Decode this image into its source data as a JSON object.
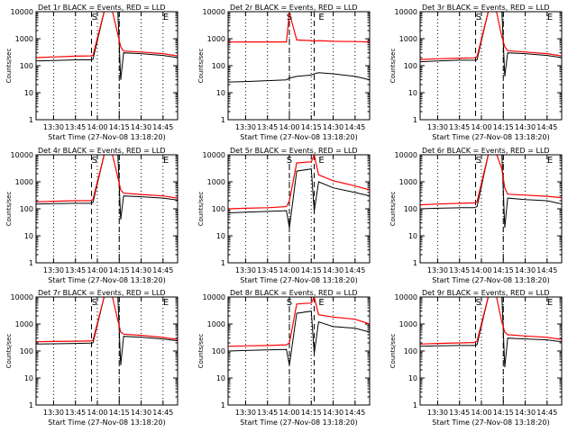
{
  "colors": {
    "events": "#000000",
    "lld": "#ff0000",
    "background": "#ffffff"
  },
  "chart_data": [
    {
      "type": "line",
      "title": "Det 1r BLACK = Events, RED = LLD",
      "xlabel": "Start Time (27-Nov-08 13:18:20)",
      "ylabel": "Counts/sec",
      "x_ticks": [
        "13:30",
        "13:45",
        "14:00",
        "14:15",
        "14:30",
        "14:45"
      ],
      "y_ticks": [
        "1",
        "10",
        "100",
        "1000",
        "10000"
      ],
      "y_scale": "log",
      "ylim": [
        1,
        10000
      ],
      "xlim": [
        "13:18",
        "14:55"
      ],
      "markers": [
        {
          "label": "S",
          "x": "13:58"
        },
        {
          "label": "E",
          "x": "14:47"
        }
      ],
      "dashed_lines": [
        "13:56",
        "14:15"
      ],
      "dotted_lines": [
        "13:30",
        "13:45",
        "14:00",
        "14:15",
        "14:30",
        "14:45"
      ],
      "series": [
        {
          "name": "Events",
          "x": [
            "13:18",
            "13:30",
            "13:45",
            "13:55",
            "13:57",
            "14:05",
            "14:10",
            "14:14",
            "14:16",
            "14:18",
            "14:30",
            "14:45",
            "14:55"
          ],
          "y": [
            150,
            155,
            165,
            165,
            170,
            12000,
            12000,
            12000,
            30,
            300,
            280,
            240,
            200
          ]
        },
        {
          "name": "LLD",
          "x": [
            "13:18",
            "13:30",
            "13:45",
            "13:55",
            "13:57",
            "14:05",
            "14:10",
            "14:14",
            "14:16",
            "14:18",
            "14:30",
            "14:45",
            "14:55"
          ],
          "y": [
            200,
            210,
            225,
            230,
            240,
            12000,
            12000,
            1500,
            500,
            350,
            320,
            280,
            230
          ]
        }
      ]
    },
    {
      "type": "line",
      "title": "Det 2r BLACK = Events, RED = LLD",
      "xlabel": "Start Time (27-Nov-08 13:18:20)",
      "ylabel": "Counts/sec",
      "x_ticks": [
        "13:30",
        "13:45",
        "14:00",
        "14:15",
        "14:30",
        "14:45"
      ],
      "y_ticks": [
        "1",
        "10",
        "100",
        "1000",
        "10000"
      ],
      "y_scale": "log",
      "ylim": [
        1,
        10000
      ],
      "xlim": [
        "13:18",
        "14:55"
      ],
      "markers": [
        {
          "label": "S",
          "x": "14:00"
        },
        {
          "label": "E",
          "x": "14:22"
        }
      ],
      "dashed_lines": [
        "14:00",
        "14:17"
      ],
      "dotted_lines": [
        "13:30",
        "13:45",
        "14:00",
        "14:15",
        "14:30",
        "14:45"
      ],
      "series": [
        {
          "name": "Events",
          "x": [
            "13:18",
            "13:30",
            "13:45",
            "13:58",
            "14:00",
            "14:05",
            "14:15",
            "14:17",
            "14:20",
            "14:30",
            "14:45",
            "14:55"
          ],
          "y": [
            25,
            26,
            28,
            30,
            35,
            40,
            45,
            50,
            55,
            50,
            40,
            30
          ]
        },
        {
          "name": "LLD",
          "x": [
            "13:18",
            "13:30",
            "13:45",
            "13:58",
            "14:00",
            "14:05",
            "14:15",
            "14:17",
            "14:20",
            "14:30",
            "14:45",
            "14:55"
          ],
          "y": [
            750,
            760,
            760,
            760,
            9000,
            900,
            850,
            800,
            850,
            800,
            780,
            760
          ]
        }
      ]
    },
    {
      "type": "line",
      "title": "Det 3r BLACK = Events, RED = LLD",
      "xlabel": "Start Time (27-Nov-08 13:18:20)",
      "ylabel": "Counts/sec",
      "x_ticks": [
        "13:30",
        "13:45",
        "14:00",
        "14:15",
        "14:30",
        "14:45"
      ],
      "y_ticks": [
        "1",
        "10",
        "100",
        "1000",
        "10000"
      ],
      "y_scale": "log",
      "ylim": [
        1,
        10000
      ],
      "xlim": [
        "13:18",
        "14:55"
      ],
      "markers": [
        {
          "label": "S",
          "x": "13:58"
        },
        {
          "label": "E",
          "x": "14:47"
        }
      ],
      "dashed_lines": [
        "13:56",
        "14:15"
      ],
      "dotted_lines": [
        "13:30",
        "13:45",
        "14:00",
        "14:15",
        "14:30",
        "14:45"
      ],
      "series": [
        {
          "name": "Events",
          "x": [
            "13:18",
            "13:30",
            "13:45",
            "13:55",
            "13:57",
            "14:05",
            "14:10",
            "14:14",
            "14:16",
            "14:18",
            "14:30",
            "14:45",
            "14:55"
          ],
          "y": [
            140,
            150,
            160,
            160,
            165,
            12000,
            12000,
            12000,
            40,
            300,
            280,
            240,
            200
          ]
        },
        {
          "name": "LLD",
          "x": [
            "13:18",
            "13:30",
            "13:45",
            "13:55",
            "13:57",
            "14:05",
            "14:10",
            "14:14",
            "14:16",
            "14:18",
            "14:30",
            "14:45",
            "14:55"
          ],
          "y": [
            170,
            180,
            190,
            195,
            210,
            12000,
            12000,
            1200,
            500,
            360,
            320,
            280,
            230
          ]
        }
      ]
    },
    {
      "type": "line",
      "title": "Det 4r BLACK = Events, RED = LLD",
      "xlabel": "Start Time (27-Nov-08 13:18:20)",
      "ylabel": "Counts/sec",
      "x_ticks": [
        "13:30",
        "13:45",
        "14:00",
        "14:15",
        "14:30",
        "14:45"
      ],
      "y_ticks": [
        "1",
        "10",
        "100",
        "1000",
        "10000"
      ],
      "y_scale": "log",
      "ylim": [
        1,
        10000
      ],
      "xlim": [
        "13:18",
        "14:55"
      ],
      "markers": [
        {
          "label": "S",
          "x": "13:58"
        },
        {
          "label": "E",
          "x": "14:47"
        }
      ],
      "dashed_lines": [
        "13:56",
        "14:15"
      ],
      "dotted_lines": [
        "13:30",
        "13:45",
        "14:00",
        "14:15",
        "14:30",
        "14:45"
      ],
      "series": [
        {
          "name": "Events",
          "x": [
            "13:18",
            "13:30",
            "13:45",
            "13:55",
            "13:57",
            "14:05",
            "14:10",
            "14:14",
            "14:16",
            "14:18",
            "14:30",
            "14:45",
            "14:55"
          ],
          "y": [
            150,
            155,
            160,
            160,
            170,
            12000,
            12000,
            12000,
            40,
            300,
            280,
            250,
            210
          ]
        },
        {
          "name": "LLD",
          "x": [
            "13:18",
            "13:30",
            "13:45",
            "13:55",
            "13:57",
            "14:05",
            "14:10",
            "14:14",
            "14:16",
            "14:18",
            "14:30",
            "14:45",
            "14:55"
          ],
          "y": [
            180,
            190,
            200,
            200,
            220,
            12000,
            12000,
            1500,
            500,
            380,
            340,
            300,
            250
          ]
        }
      ]
    },
    {
      "type": "line",
      "title": "Det 5r BLACK = Events, RED = LLD",
      "xlabel": "Start Time (27-Nov-08 13:18:20)",
      "ylabel": "Counts/sec",
      "x_ticks": [
        "13:30",
        "13:45",
        "14:00",
        "14:15",
        "14:30",
        "14:45"
      ],
      "y_ticks": [
        "1",
        "10",
        "100",
        "1000",
        "10000"
      ],
      "y_scale": "log",
      "ylim": [
        1,
        10000
      ],
      "xlim": [
        "13:18",
        "14:55"
      ],
      "markers": [
        {
          "label": "S",
          "x": "14:00"
        },
        {
          "label": "E",
          "x": "14:22"
        }
      ],
      "dashed_lines": [
        "14:00",
        "14:17"
      ],
      "dotted_lines": [
        "13:30",
        "13:45",
        "14:00",
        "14:15",
        "14:30",
        "14:45"
      ],
      "series": [
        {
          "name": "Events",
          "x": [
            "13:18",
            "13:30",
            "13:45",
            "13:58",
            "14:00",
            "14:05",
            "14:15",
            "14:17",
            "14:20",
            "14:30",
            "14:45",
            "14:55"
          ],
          "y": [
            70,
            75,
            80,
            85,
            20,
            2500,
            3000,
            80,
            1000,
            600,
            400,
            300
          ]
        },
        {
          "name": "LLD",
          "x": [
            "13:18",
            "13:30",
            "13:45",
            "13:58",
            "14:00",
            "14:05",
            "14:15",
            "14:17",
            "14:20",
            "14:30",
            "14:45",
            "14:55"
          ],
          "y": [
            100,
            105,
            110,
            120,
            200,
            5000,
            5500,
            10000,
            1800,
            1100,
            700,
            500
          ]
        }
      ]
    },
    {
      "type": "line",
      "title": "Det 6r BLACK = Events, RED = LLD",
      "xlabel": "Start Time (27-Nov-08 13:18:20)",
      "ylabel": "Counts/sec",
      "x_ticks": [
        "13:30",
        "13:45",
        "14:00",
        "14:15",
        "14:30",
        "14:45"
      ],
      "y_ticks": [
        "1",
        "10",
        "100",
        "1000",
        "10000"
      ],
      "y_scale": "log",
      "ylim": [
        1,
        10000
      ],
      "xlim": [
        "13:18",
        "14:55"
      ],
      "markers": [
        {
          "label": "S",
          "x": "13:58"
        },
        {
          "label": "E",
          "x": "14:47"
        }
      ],
      "dashed_lines": [
        "13:56",
        "14:15"
      ],
      "dotted_lines": [
        "13:30",
        "13:45",
        "14:00",
        "14:15",
        "14:30",
        "14:45"
      ],
      "series": [
        {
          "name": "Events",
          "x": [
            "13:18",
            "13:30",
            "13:45",
            "13:55",
            "13:57",
            "14:05",
            "14:10",
            "14:14",
            "14:16",
            "14:18",
            "14:30",
            "14:45",
            "14:55"
          ],
          "y": [
            100,
            105,
            110,
            110,
            120,
            12000,
            12000,
            12000,
            20,
            250,
            220,
            200,
            150
          ]
        },
        {
          "name": "LLD",
          "x": [
            "13:18",
            "13:30",
            "13:45",
            "13:55",
            "13:57",
            "14:05",
            "14:10",
            "14:14",
            "14:16",
            "14:18",
            "14:30",
            "14:45",
            "14:55"
          ],
          "y": [
            140,
            150,
            160,
            165,
            180,
            12000,
            12000,
            3000,
            600,
            350,
            320,
            290,
            260
          ]
        }
      ]
    },
    {
      "type": "line",
      "title": "Det 7r BLACK = Events, RED = LLD",
      "xlabel": "Start Time (27-Nov-08 13:18:20)",
      "ylabel": "Counts/sec",
      "x_ticks": [
        "13:30",
        "13:45",
        "14:00",
        "14:15",
        "14:30",
        "14:45"
      ],
      "y_ticks": [
        "1",
        "10",
        "100",
        "1000",
        "10000"
      ],
      "y_scale": "log",
      "ylim": [
        1,
        10000
      ],
      "xlim": [
        "13:18",
        "14:55"
      ],
      "markers": [
        {
          "label": "S",
          "x": "13:58"
        },
        {
          "label": "E",
          "x": "14:47"
        }
      ],
      "dashed_lines": [
        "13:56",
        "14:15"
      ],
      "dotted_lines": [
        "13:30",
        "13:45",
        "14:00",
        "14:15",
        "14:30",
        "14:45"
      ],
      "series": [
        {
          "name": "Events",
          "x": [
            "13:18",
            "13:30",
            "13:45",
            "13:55",
            "13:57",
            "14:05",
            "14:10",
            "14:14",
            "14:16",
            "14:18",
            "14:30",
            "14:45",
            "14:55"
          ],
          "y": [
            180,
            185,
            190,
            195,
            200,
            12000,
            12000,
            12000,
            30,
            350,
            320,
            280,
            240
          ]
        },
        {
          "name": "LLD",
          "x": [
            "13:18",
            "13:30",
            "13:45",
            "13:55",
            "13:57",
            "14:05",
            "14:10",
            "14:14",
            "14:16",
            "14:18",
            "14:30",
            "14:45",
            "14:55"
          ],
          "y": [
            220,
            225,
            230,
            235,
            250,
            12000,
            12000,
            1400,
            500,
            420,
            380,
            320,
            270
          ]
        }
      ]
    },
    {
      "type": "line",
      "title": "Det 8r BLACK = Events, RED = LLD",
      "xlabel": "Start Time (27-Nov-08 13:18:20)",
      "ylabel": "Counts/sec",
      "x_ticks": [
        "13:30",
        "13:45",
        "14:00",
        "14:15",
        "14:30",
        "14:45"
      ],
      "y_ticks": [
        "1",
        "10",
        "100",
        "1000",
        "10000"
      ],
      "y_scale": "log",
      "ylim": [
        1,
        10000
      ],
      "xlim": [
        "13:18",
        "14:55"
      ],
      "markers": [
        {
          "label": "S",
          "x": "14:00"
        },
        {
          "label": "E",
          "x": "14:22"
        }
      ],
      "dashed_lines": [
        "14:00",
        "14:17"
      ],
      "dotted_lines": [
        "13:30",
        "13:45",
        "14:00",
        "14:15",
        "14:30",
        "14:45"
      ],
      "series": [
        {
          "name": "Events",
          "x": [
            "13:18",
            "13:30",
            "13:45",
            "13:58",
            "14:00",
            "14:05",
            "14:15",
            "14:17",
            "14:20",
            "14:30",
            "14:45",
            "14:55"
          ],
          "y": [
            100,
            105,
            110,
            115,
            30,
            2500,
            3000,
            80,
            1200,
            800,
            700,
            500
          ]
        },
        {
          "name": "LLD",
          "x": [
            "13:18",
            "13:30",
            "13:45",
            "13:58",
            "14:00",
            "14:05",
            "14:15",
            "14:17",
            "14:20",
            "14:30",
            "14:45",
            "14:55"
          ],
          "y": [
            150,
            155,
            160,
            170,
            200,
            5500,
            6000,
            10000,
            2200,
            1800,
            1500,
            1000
          ]
        }
      ]
    },
    {
      "type": "line",
      "title": "Det 9r BLACK = Events, RED = LLD",
      "xlabel": "Start Time (27-Nov-08 13:18:20)",
      "ylabel": "Counts/sec",
      "x_ticks": [
        "13:30",
        "13:45",
        "14:00",
        "14:15",
        "14:30",
        "14:45"
      ],
      "y_ticks": [
        "1",
        "10",
        "100",
        "1000",
        "10000"
      ],
      "y_scale": "log",
      "ylim": [
        1,
        10000
      ],
      "xlim": [
        "13:18",
        "14:55"
      ],
      "markers": [
        {
          "label": "S",
          "x": "13:58"
        },
        {
          "label": "E",
          "x": "14:47"
        }
      ],
      "dashed_lines": [
        "13:56",
        "14:15"
      ],
      "dotted_lines": [
        "13:30",
        "13:45",
        "14:00",
        "14:15",
        "14:30",
        "14:45"
      ],
      "series": [
        {
          "name": "Events",
          "x": [
            "13:18",
            "13:30",
            "13:45",
            "13:55",
            "13:57",
            "14:05",
            "14:10",
            "14:14",
            "14:16",
            "14:18",
            "14:30",
            "14:45",
            "14:55"
          ],
          "y": [
            150,
            155,
            160,
            160,
            170,
            12000,
            12000,
            12000,
            25,
            300,
            280,
            260,
            220
          ]
        },
        {
          "name": "LLD",
          "x": [
            "13:18",
            "13:30",
            "13:45",
            "13:55",
            "13:57",
            "14:05",
            "14:10",
            "14:14",
            "14:16",
            "14:18",
            "14:30",
            "14:45",
            "14:55"
          ],
          "y": [
            180,
            190,
            200,
            205,
            230,
            12000,
            12000,
            1200,
            500,
            400,
            360,
            320,
            270
          ]
        }
      ]
    }
  ]
}
